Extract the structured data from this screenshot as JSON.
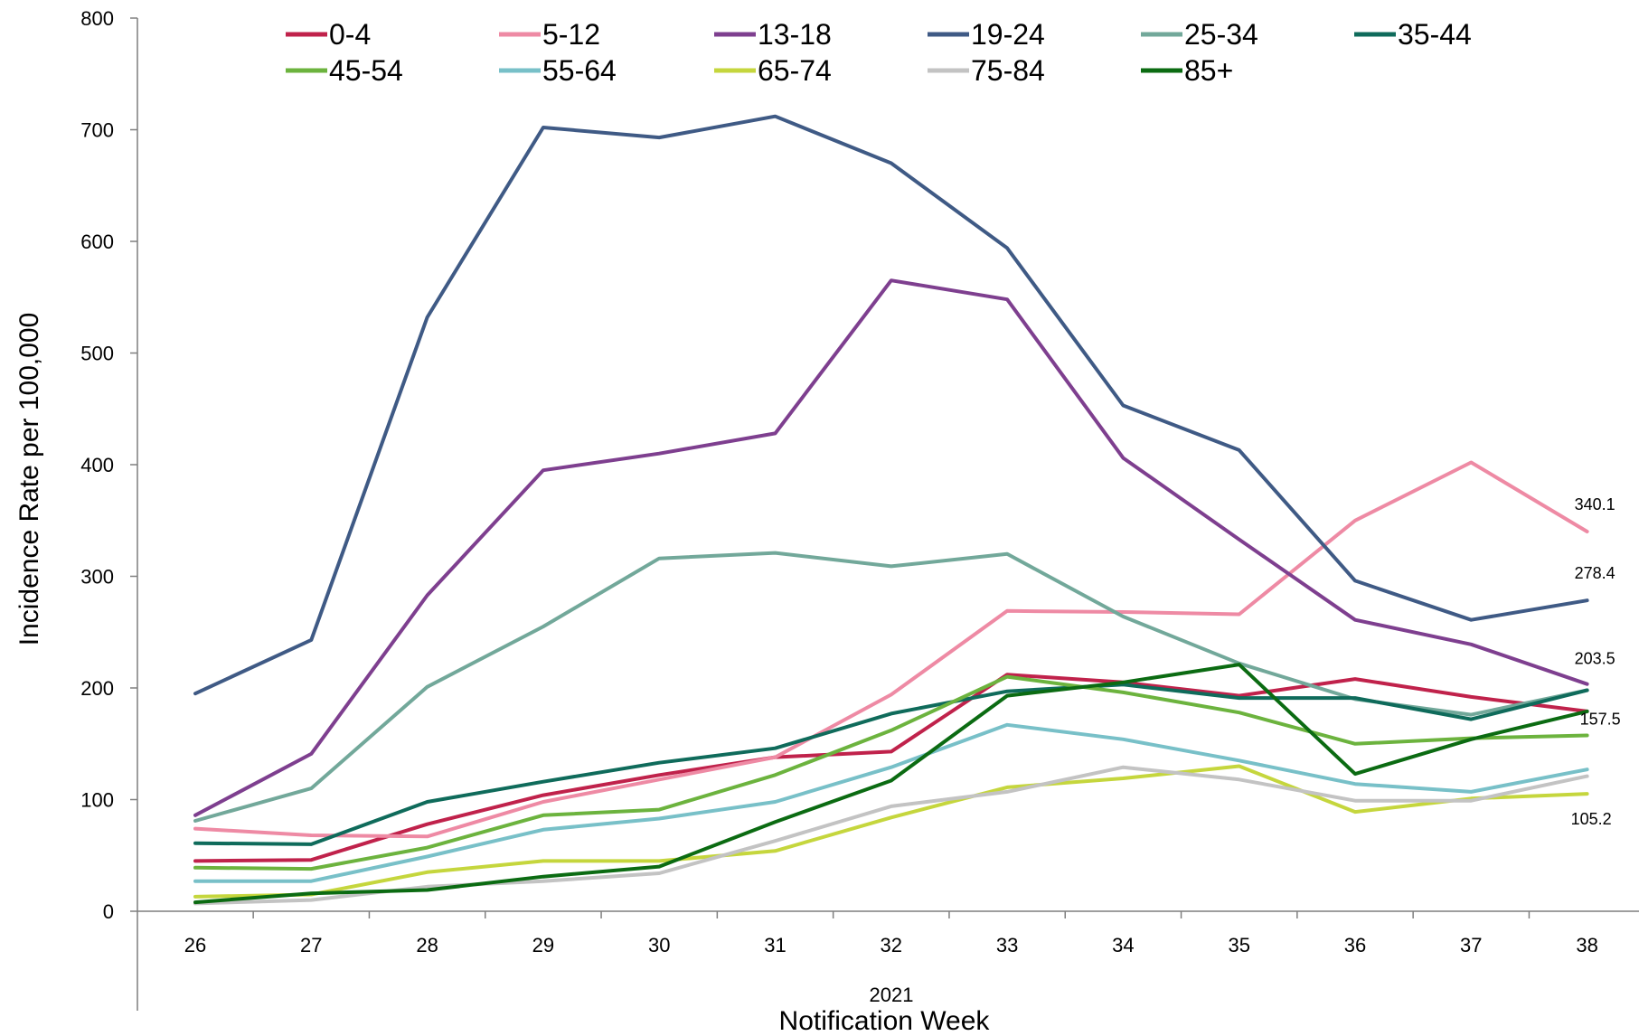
{
  "chart_data": {
    "type": "line",
    "title": "",
    "xlabel": "Notification Week",
    "x_sublabel": "2021",
    "ylabel": "Incidence Rate per 100,000",
    "ylim": [
      0,
      800
    ],
    "yticks": [
      0,
      100,
      200,
      300,
      400,
      500,
      600,
      700,
      800
    ],
    "x": [
      "26",
      "27",
      "28",
      "29",
      "30",
      "31",
      "32",
      "33",
      "34",
      "35",
      "36",
      "37",
      "38"
    ],
    "legend_position": "top",
    "grid": false,
    "series": [
      {
        "name": "0-4",
        "color": "#c0224b",
        "values": [
          45,
          46,
          78,
          104,
          122,
          138,
          143,
          212,
          205,
          193,
          208,
          192,
          179
        ]
      },
      {
        "name": "5-12",
        "color": "#ee8aa4",
        "values": [
          74,
          68,
          67,
          98,
          118,
          138,
          194,
          269,
          268,
          266,
          350,
          402,
          340.1
        ]
      },
      {
        "name": "13-18",
        "color": "#7e3f8f",
        "values": [
          86,
          141,
          283,
          395,
          410,
          428,
          565,
          548,
          406,
          333,
          261,
          239,
          203.5
        ]
      },
      {
        "name": "19-24",
        "color": "#3f5a85",
        "values": [
          195,
          243,
          532,
          702,
          693,
          712,
          670,
          594,
          453,
          413,
          296,
          261,
          278.4
        ]
      },
      {
        "name": "25-34",
        "color": "#72a89a",
        "values": [
          81,
          110,
          201,
          255,
          316,
          321,
          309,
          320,
          264,
          222,
          190,
          176,
          198
        ]
      },
      {
        "name": "35-44",
        "color": "#0f6b5b",
        "values": [
          61,
          60,
          98,
          116,
          133,
          146,
          177,
          197,
          203,
          191,
          191,
          172,
          198
        ]
      },
      {
        "name": "45-54",
        "color": "#6cb33e",
        "values": [
          39,
          38,
          57,
          86,
          91,
          122,
          162,
          210,
          196,
          178,
          150,
          155,
          157.5
        ]
      },
      {
        "name": "55-64",
        "color": "#78c0c8",
        "values": [
          27,
          27,
          49,
          73,
          83,
          98,
          129,
          167,
          154,
          135,
          114,
          107,
          127
        ]
      },
      {
        "name": "65-74",
        "color": "#c5d63d",
        "values": [
          13,
          15,
          35,
          45,
          45,
          54,
          84,
          111,
          119,
          130,
          89,
          101,
          105.2
        ]
      },
      {
        "name": "75-84",
        "color": "#c3c3c3",
        "values": [
          7,
          10,
          22,
          27,
          34,
          63,
          94,
          107,
          129,
          118,
          99,
          99,
          121
        ]
      },
      {
        "name": "85+",
        "color": "#0b6b12",
        "values": [
          8,
          16,
          19,
          31,
          40,
          80,
          117,
          193,
          205,
          221,
          123,
          154,
          179
        ]
      }
    ],
    "end_labels": [
      {
        "series": "5-12",
        "text": "340.1"
      },
      {
        "series": "19-24",
        "text": "278.4"
      },
      {
        "series": "13-18",
        "text": "203.5"
      },
      {
        "series": "45-54",
        "text": "157.5"
      },
      {
        "series": "65-74",
        "text": "105.2"
      }
    ]
  }
}
